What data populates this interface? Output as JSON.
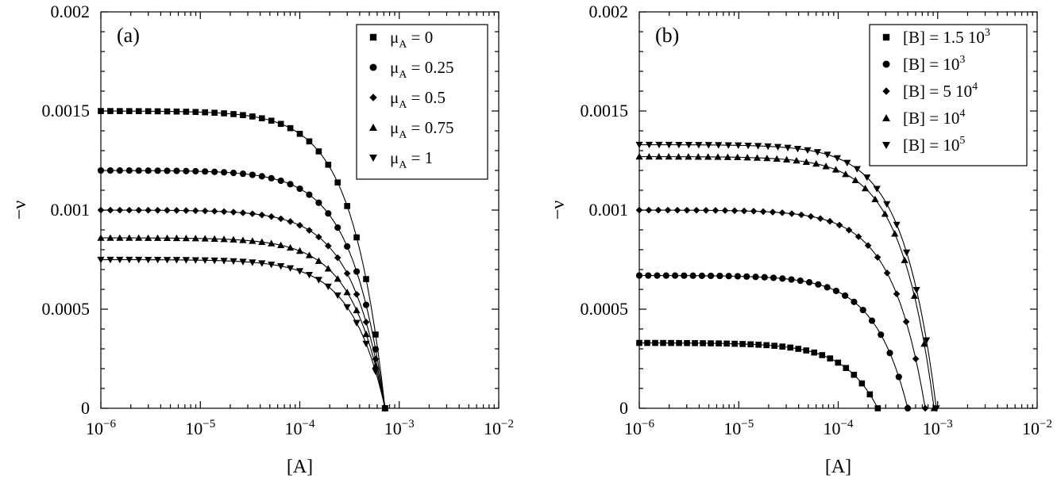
{
  "colors": {
    "ink": "#000000",
    "background": "#ffffff"
  },
  "chart_data": [
    {
      "type": "scatter",
      "panel_label": "(a)",
      "xlabel": "[A]",
      "ylabel": "−ν",
      "xscale": "log",
      "xlim": [
        1e-06,
        0.01
      ],
      "ylim": [
        0,
        0.002
      ],
      "x_ticks": [
        {
          "base": "10",
          "exp": "−6"
        },
        {
          "base": "10",
          "exp": "−5"
        },
        {
          "base": "10",
          "exp": "−4"
        },
        {
          "base": "10",
          "exp": "−3"
        },
        {
          "base": "10",
          "exp": "−2"
        }
      ],
      "y_ticks": [
        "0",
        "0.0005",
        "0.001",
        "0.0015",
        "0.002"
      ],
      "legend_position": "top-right",
      "series": [
        {
          "name": "μ_A = 0",
          "legend": {
            "pre": "μ",
            "sub": "A",
            "post": " = 0"
          },
          "marker": "square",
          "y0": 0.0015,
          "x_end": 0.00072
        },
        {
          "name": "μ_A = 0.25",
          "legend": {
            "pre": "μ",
            "sub": "A",
            "post": " = 0.25"
          },
          "marker": "circle",
          "y0": 0.0012,
          "x_end": 0.00072
        },
        {
          "name": "μ_A = 0.5",
          "legend": {
            "pre": "μ",
            "sub": "A",
            "post": " = 0.5"
          },
          "marker": "diamond",
          "y0": 0.001,
          "x_end": 0.00072
        },
        {
          "name": "μ_A = 0.75",
          "legend": {
            "pre": "μ",
            "sub": "A",
            "post": " = 0.75"
          },
          "marker": "triangle-up",
          "y0": 0.00086,
          "x_end": 0.00072
        },
        {
          "name": "μ_A = 1",
          "legend": {
            "pre": "μ",
            "sub": "A",
            "post": " = 1"
          },
          "marker": "triangle-down",
          "y0": 0.00075,
          "x_end": 0.00072
        }
      ]
    },
    {
      "type": "scatter",
      "panel_label": "(b)",
      "xlabel": "[A]",
      "ylabel": "−ν",
      "xscale": "log",
      "xlim": [
        1e-06,
        0.01
      ],
      "ylim": [
        0,
        0.002
      ],
      "x_ticks": [
        {
          "base": "10",
          "exp": "−6"
        },
        {
          "base": "10",
          "exp": "−5"
        },
        {
          "base": "10",
          "exp": "−4"
        },
        {
          "base": "10",
          "exp": "−3"
        },
        {
          "base": "10",
          "exp": "−2"
        }
      ],
      "y_ticks": [
        "0",
        "0.0005",
        "0.001",
        "0.0015",
        "0.002"
      ],
      "legend_position": "top-right",
      "series": [
        {
          "name": "[B] = 1.5 10^3",
          "legend": {
            "pre": "[B] = 1.5 10",
            "sup": "3"
          },
          "marker": "square",
          "y0": 0.00033,
          "x_end": 0.00025
        },
        {
          "name": "[B] = 10^3",
          "legend": {
            "pre": "[B] = 10",
            "sup": "3"
          },
          "marker": "circle",
          "y0": 0.00067,
          "x_end": 0.0005
        },
        {
          "name": "[B] = 5 10^4",
          "legend": {
            "pre": "[B] = 5 10",
            "sup": "4"
          },
          "marker": "diamond",
          "y0": 0.001,
          "x_end": 0.00075
        },
        {
          "name": "[B] = 10^4",
          "legend": {
            "pre": "[B] = 10",
            "sup": "4"
          },
          "marker": "triangle-up",
          "y0": 0.00127,
          "x_end": 0.00092
        },
        {
          "name": "[B] = 10^5",
          "legend": {
            "pre": "[B] = 10",
            "sup": "5"
          },
          "marker": "triangle-down",
          "y0": 0.00133,
          "x_end": 0.00097
        }
      ]
    }
  ]
}
